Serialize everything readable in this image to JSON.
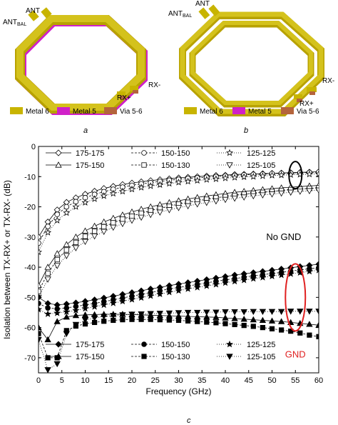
{
  "panel_a": {
    "label": "a",
    "ports": {
      "ant": "ANT",
      "ant_bal": "ANT",
      "ant_bal_sub": "BAL",
      "rx_plus": "RX+",
      "rx_minus": "RX-"
    },
    "legend": [
      {
        "name": "Metal 6",
        "color": "#c8b400"
      },
      {
        "name": "Metal 5",
        "color": "#d020c8"
      },
      {
        "name": "Via 5-6",
        "color": "#b4643c"
      }
    ]
  },
  "panel_b": {
    "label": "b",
    "ports": {
      "ant": "ANT",
      "ant_bal": "ANT",
      "ant_bal_sub": "BAL",
      "rx_plus": "RX+",
      "rx_minus": "RX-"
    },
    "legend": [
      {
        "name": "Metal 6",
        "color": "#c8b400"
      },
      {
        "name": "Metal 5",
        "color": "#d020c8"
      },
      {
        "name": "Via 5-6",
        "color": "#b4643c"
      }
    ]
  },
  "panel_c": {
    "label": "c"
  },
  "chart_data": {
    "type": "line",
    "title": "",
    "xlabel": "Frequency (GHz)",
    "ylabel": "Isolation between TX-RX+ or TX-RX- (dB)",
    "xlim": [
      0,
      60
    ],
    "ylim": [
      -75,
      0
    ],
    "xticks": [
      "0",
      "5",
      "10",
      "15",
      "20",
      "25",
      "30",
      "35",
      "40",
      "45",
      "50",
      "55",
      "60"
    ],
    "yticks": [
      "0",
      "-10",
      "-20",
      "-30",
      "-40",
      "-50",
      "-60",
      "-70"
    ],
    "grid": false,
    "x": [
      0,
      2,
      4,
      6,
      8,
      10,
      12,
      14,
      16,
      18,
      20,
      22,
      24,
      26,
      28,
      30,
      32,
      34,
      36,
      38,
      40,
      42,
      44,
      46,
      48,
      50,
      52,
      54,
      56,
      58,
      60
    ],
    "annotations": [
      {
        "text": "No GND",
        "color": "#000000",
        "at": [
          52.5,
          -30
        ]
      },
      {
        "text": "GND",
        "color": "#e02020",
        "at": [
          55,
          -69
        ]
      }
    ],
    "legend_open": [
      "175-175",
      "150-150",
      "125-125",
      "175-150",
      "150-130",
      "125-105"
    ],
    "legend_filled": [
      "175-175",
      "150-150",
      "125-125",
      "175-150",
      "150-130",
      "125-105"
    ],
    "series": [
      {
        "name": "175-175",
        "group": "No GND",
        "marker": "diamond",
        "filled": false,
        "values": [
          -30,
          -25,
          -21,
          -18.5,
          -17,
          -15.8,
          -14.8,
          -13.9,
          -13.2,
          -12.6,
          -12.1,
          -11.7,
          -11.3,
          -11,
          -10.7,
          -10.4,
          -10.2,
          -10,
          -9.8,
          -9.6,
          -9.5,
          -9.3,
          -9.2,
          -9.1,
          -9,
          -8.9,
          -8.8,
          -8.7,
          -8.6,
          -8.5,
          -8.4
        ]
      },
      {
        "name": "150-150",
        "group": "No GND",
        "marker": "circle",
        "filled": false,
        "values": [
          -32,
          -26.5,
          -22.5,
          -20,
          -18.3,
          -17,
          -15.9,
          -15,
          -14.2,
          -13.5,
          -12.9,
          -12.4,
          -12,
          -11.6,
          -11.2,
          -10.9,
          -10.6,
          -10.4,
          -10.2,
          -10,
          -9.8,
          -9.6,
          -9.4,
          -9.3,
          -9.2,
          -9,
          -8.9,
          -8.8,
          -8.7,
          -8.6,
          -8.5
        ]
      },
      {
        "name": "125-125",
        "group": "No GND",
        "marker": "star",
        "filled": false,
        "values": [
          -35,
          -28.5,
          -24.5,
          -22,
          -20,
          -18.6,
          -17.4,
          -16.4,
          -15.6,
          -14.9,
          -14.2,
          -13.6,
          -13.1,
          -12.7,
          -12.3,
          -11.9,
          -11.6,
          -11.3,
          -11,
          -10.8,
          -10.5,
          -10.3,
          -10.1,
          -10,
          -9.8,
          -9.6,
          -9.5,
          -9.4,
          -9.3,
          -9.2,
          -9.1
        ]
      },
      {
        "name": "175-150",
        "group": "No GND",
        "marker": "triangle-up",
        "filled": false,
        "values": [
          -46,
          -40,
          -35.5,
          -32.5,
          -30,
          -28,
          -26.4,
          -25,
          -23.8,
          -22.7,
          -21.7,
          -20.8,
          -20,
          -19.3,
          -18.6,
          -18,
          -17.4,
          -16.9,
          -16.4,
          -16,
          -15.6,
          -15.2,
          -14.9,
          -14.6,
          -14.3,
          -14,
          -13.7,
          -13.5,
          -13.3,
          -13.1,
          -12.9
        ]
      },
      {
        "name": "150-130",
        "group": "No GND",
        "marker": "square",
        "filled": false,
        "values": [
          -48,
          -42,
          -37.5,
          -34.3,
          -31.8,
          -29.8,
          -28.1,
          -26.6,
          -25.3,
          -24.1,
          -23.1,
          -22.1,
          -21.3,
          -20.5,
          -19.8,
          -19.1,
          -18.5,
          -18,
          -17.5,
          -17,
          -16.6,
          -16.2,
          -15.8,
          -15.5,
          -15.2,
          -14.9,
          -14.6,
          -14.3,
          -14.1,
          -13.9,
          -13.7
        ]
      },
      {
        "name": "125-105",
        "group": "No GND",
        "marker": "triangle-down",
        "filled": false,
        "values": [
          -50,
          -44,
          -39.5,
          -36.2,
          -33.6,
          -31.5,
          -29.7,
          -28.2,
          -26.8,
          -25.6,
          -24.5,
          -23.5,
          -22.6,
          -21.8,
          -21,
          -20.3,
          -19.7,
          -19.1,
          -18.6,
          -18.1,
          -17.6,
          -17.2,
          -16.8,
          -16.4,
          -16.1,
          -15.8,
          -15.5,
          -15.2,
          -14.9,
          -14.7,
          -14.5
        ]
      },
      {
        "name": "175-175",
        "group": "GND",
        "marker": "diamond",
        "filled": true,
        "values": [
          -50,
          -52,
          -52.5,
          -52.2,
          -51.8,
          -51.3,
          -50.8,
          -50.2,
          -49.6,
          -49,
          -48.4,
          -47.8,
          -47.2,
          -46.7,
          -46.1,
          -45.6,
          -45.1,
          -44.6,
          -44.1,
          -43.6,
          -43.1,
          -42.6,
          -42.2,
          -41.8,
          -41.4,
          -41,
          -40.6,
          -40.2,
          -39.8,
          -39.4,
          -39
        ]
      },
      {
        "name": "150-150",
        "group": "GND",
        "marker": "circle",
        "filled": true,
        "values": [
          -52,
          -53.5,
          -53.8,
          -53.5,
          -53,
          -52.5,
          -52,
          -51.4,
          -50.8,
          -50.2,
          -49.6,
          -49,
          -48.4,
          -47.8,
          -47.2,
          -46.7,
          -46.2,
          -45.7,
          -45.2,
          -44.7,
          -44.2,
          -43.8,
          -43.3,
          -42.9,
          -42.5,
          -42.1,
          -41.7,
          -41.3,
          -40.9,
          -40.5,
          -40.2
        ]
      },
      {
        "name": "125-125",
        "group": "GND",
        "marker": "star",
        "filled": true,
        "values": [
          -54,
          -55.5,
          -55.2,
          -54.8,
          -54.3,
          -53.7,
          -53.1,
          -52.5,
          -51.9,
          -51.3,
          -50.7,
          -50.1,
          -49.5,
          -48.9,
          -48.3,
          -47.8,
          -47.2,
          -46.7,
          -46.2,
          -45.7,
          -45.2,
          -44.7,
          -44.3,
          -43.8,
          -43.4,
          -43,
          -42.6,
          -42.2,
          -41.8,
          -41.4,
          -41
        ]
      },
      {
        "name": "175-150",
        "group": "GND",
        "marker": "triangle-up",
        "filled": true,
        "values": [
          -60,
          -64,
          -58,
          -56.5,
          -56,
          -55.8,
          -55.7,
          -55.6,
          -55.6,
          -55.6,
          -55.7,
          -55.8,
          -55.9,
          -56,
          -56.1,
          -56.2,
          -56.3,
          -56.4,
          -56.5,
          -56.6,
          -56.8,
          -57,
          -57.2,
          -57.4,
          -57.6,
          -57.8,
          -58,
          -58.3,
          -58.6,
          -58.9,
          -59.2
        ]
      },
      {
        "name": "150-130",
        "group": "GND",
        "marker": "square",
        "filled": true,
        "values": [
          -62,
          -70,
          -70,
          -61,
          -59.5,
          -58.8,
          -58.3,
          -57.9,
          -57.6,
          -57.4,
          -57.3,
          -57.3,
          -57.3,
          -57.4,
          -57.5,
          -57.6,
          -57.8,
          -58,
          -58.2,
          -58.4,
          -58.7,
          -59,
          -59.3,
          -59.6,
          -60,
          -60.4,
          -60.8,
          -61.2,
          -61.8,
          -62.5,
          -63
        ]
      },
      {
        "name": "125-105",
        "group": "GND",
        "marker": "triangle-down",
        "filled": true,
        "values": [
          -64,
          -74,
          -72,
          -62,
          -59,
          -57.5,
          -56.8,
          -56.3,
          -56,
          -55.8,
          -55.6,
          -55.5,
          -55.4,
          -55.3,
          -55.2,
          -55.1,
          -55,
          -55,
          -54.9,
          -54.9,
          -54.8,
          -54.8,
          -54.8,
          -54.7,
          -54.7,
          -54.7,
          -54.7,
          -54.6,
          -54.6,
          -54.6,
          -54.6
        ]
      }
    ]
  }
}
